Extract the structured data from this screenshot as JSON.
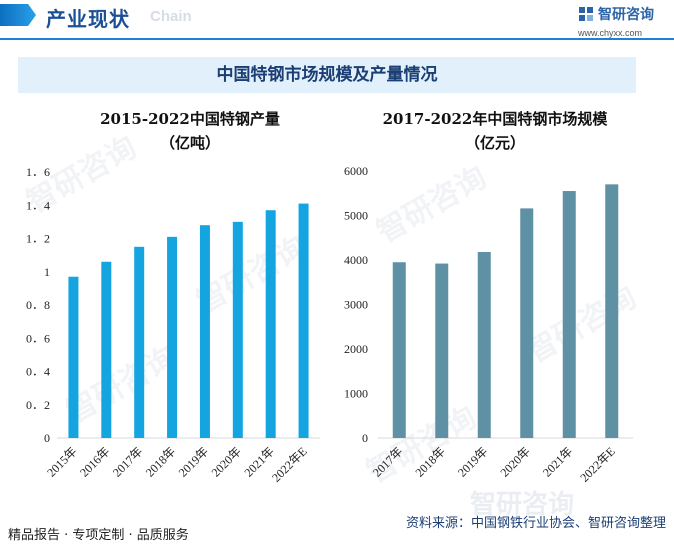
{
  "header": {
    "title": "产业现状",
    "ghost_text": "Chain",
    "brand_name": "智研咨询",
    "brand_url": "www.chyxx.com"
  },
  "banner": {
    "title": "中国特钢市场规模及产量情况"
  },
  "colors": {
    "left_bar": "#14a5e0",
    "right_bar": "#5e91a3",
    "banner_bg": "#e1f0fb",
    "accent": "#1f7fd0"
  },
  "watermark": {
    "text": "智研咨询"
  },
  "footer": {
    "left": "精品报告 · 专项定制 · 品质服务",
    "right": "资料来源：中国钢铁行业协会、智研咨询整理",
    "ghost_brand": "智研咨询"
  },
  "chart_data": [
    {
      "type": "bar",
      "title": "2015-2022中国特钢产量",
      "subtitle": "（亿吨）",
      "categories": [
        "2015年",
        "2016年",
        "2017年",
        "2018年",
        "2019年",
        "2020年",
        "2021年",
        "2022年E"
      ],
      "values": [
        0.97,
        1.06,
        1.15,
        1.21,
        1.28,
        1.3,
        1.37,
        1.41
      ],
      "ylim": [
        0,
        1.6
      ],
      "yticks": [
        "0",
        "0．2",
        "0．4",
        "0．6",
        "0．8",
        "1",
        "1．2",
        "1．4",
        "1．6"
      ],
      "grid": false,
      "color": "#14a5e0"
    },
    {
      "type": "bar",
      "title": "2017-2022年中国特钢市场规模",
      "subtitle": "（亿元）",
      "categories": [
        "2017年",
        "2018年",
        "2019年",
        "2020年",
        "2021年",
        "2022年E"
      ],
      "values": [
        3950,
        3920,
        4180,
        5160,
        5550,
        5700
      ],
      "ylim": [
        0,
        6000
      ],
      "yticks": [
        "0",
        "1000",
        "2000",
        "3000",
        "4000",
        "5000",
        "6000"
      ],
      "grid": false,
      "color": "#5e91a3"
    }
  ]
}
